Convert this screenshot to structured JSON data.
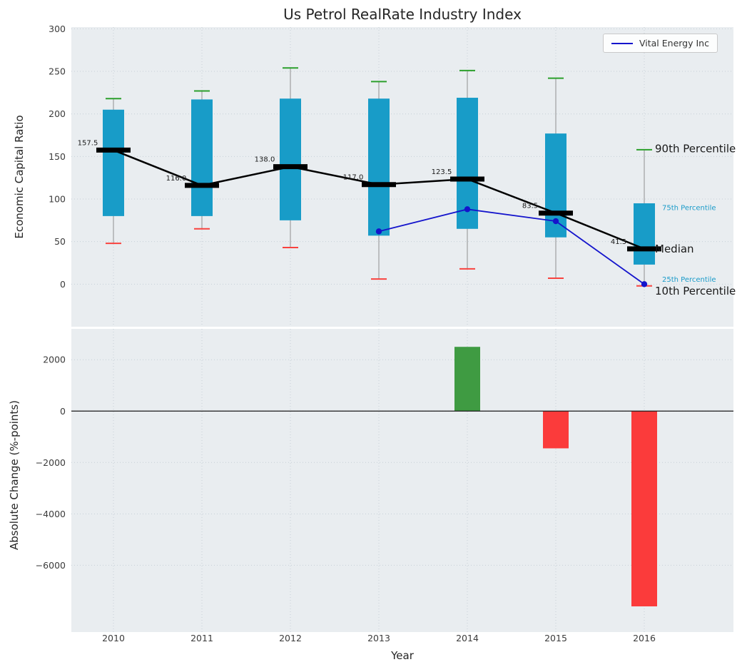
{
  "title": "Us Petrol RealRate Industry Index",
  "legend": {
    "label": "Vital Energy Inc",
    "line_color": "#1414cc"
  },
  "colors": {
    "figure_bg": "#ffffff",
    "axes_bg": "#e9edf0",
    "grid": "#c6cfd6",
    "box_fill": "#189cc8",
    "whisker": "#909090",
    "cap_top": "#2ca02c",
    "cap_bottom": "#f9423e",
    "median_line": "#000000",
    "company_line": "#1414cc",
    "bar_positive": "#3f9b42",
    "bar_negative": "#fb3b3b",
    "annotation_large": "#1a1a1a",
    "annotation_small": "#1a9bc9",
    "tick_label": "#3b3b3b",
    "zero_line": "#1a1a1a"
  },
  "chart_data": [
    {
      "type": "boxplot",
      "title": "Us Petrol RealRate Industry Index",
      "ylabel": "Economic Capital Ratio",
      "xlabel": "",
      "ylim": [
        -50,
        302
      ],
      "yticks": [
        0,
        50,
        100,
        150,
        200,
        250,
        300
      ],
      "grid": true,
      "legend_position": "upper right",
      "categories": [
        "2010",
        "2011",
        "2012",
        "2013",
        "2014",
        "2015",
        "2016"
      ],
      "boxes": [
        {
          "year": "2010",
          "p10": 48,
          "p25": 80,
          "median": 157.5,
          "p75": 205,
          "p90": 218
        },
        {
          "year": "2011",
          "p10": 65,
          "p25": 80,
          "median": 116.0,
          "p75": 217,
          "p90": 227
        },
        {
          "year": "2012",
          "p10": 43,
          "p25": 75,
          "median": 138.0,
          "p75": 218,
          "p90": 254
        },
        {
          "year": "2013",
          "p10": 6,
          "p25": 57,
          "median": 117.0,
          "p75": 218,
          "p90": 238
        },
        {
          "year": "2014",
          "p10": 18,
          "p25": 65,
          "median": 123.5,
          "p75": 219,
          "p90": 251
        },
        {
          "year": "2015",
          "p10": 7,
          "p25": 55,
          "median": 83.5,
          "p75": 177,
          "p90": 242
        },
        {
          "year": "2016",
          "p10": -2,
          "p25": 23,
          "median": 41.5,
          "p75": 95,
          "p90": 158
        }
      ],
      "median_labels": [
        "157.5",
        "116.0",
        "138.0",
        "117.0",
        "123.5",
        "83.5",
        "41.5"
      ],
      "series": [
        {
          "name": "Vital Energy Inc",
          "x": [
            "2013",
            "2014",
            "2015",
            "2016"
          ],
          "y": [
            62,
            88,
            74,
            0
          ]
        }
      ],
      "annotations": [
        {
          "text": "90th Percentile",
          "y": 159,
          "size": "large"
        },
        {
          "text": "75th Percentile",
          "y": 89,
          "size": "small"
        },
        {
          "text": "Median",
          "y": 41.5,
          "size": "large"
        },
        {
          "text": "25th Percentile",
          "y": 5,
          "size": "small"
        },
        {
          "text": "10th Percentile",
          "y": -8,
          "size": "large"
        }
      ]
    },
    {
      "type": "bar",
      "ylabel": "Absolute Change (%-points)",
      "xlabel": "Year",
      "ylim": [
        -8600,
        3200
      ],
      "yticks": [
        2000,
        0,
        -2000,
        -4000,
        -6000
      ],
      "grid": true,
      "categories": [
        "2010",
        "2011",
        "2012",
        "2013",
        "2014",
        "2015",
        "2016"
      ],
      "values": [
        null,
        null,
        null,
        null,
        2500,
        -1450,
        -7600
      ]
    }
  ]
}
